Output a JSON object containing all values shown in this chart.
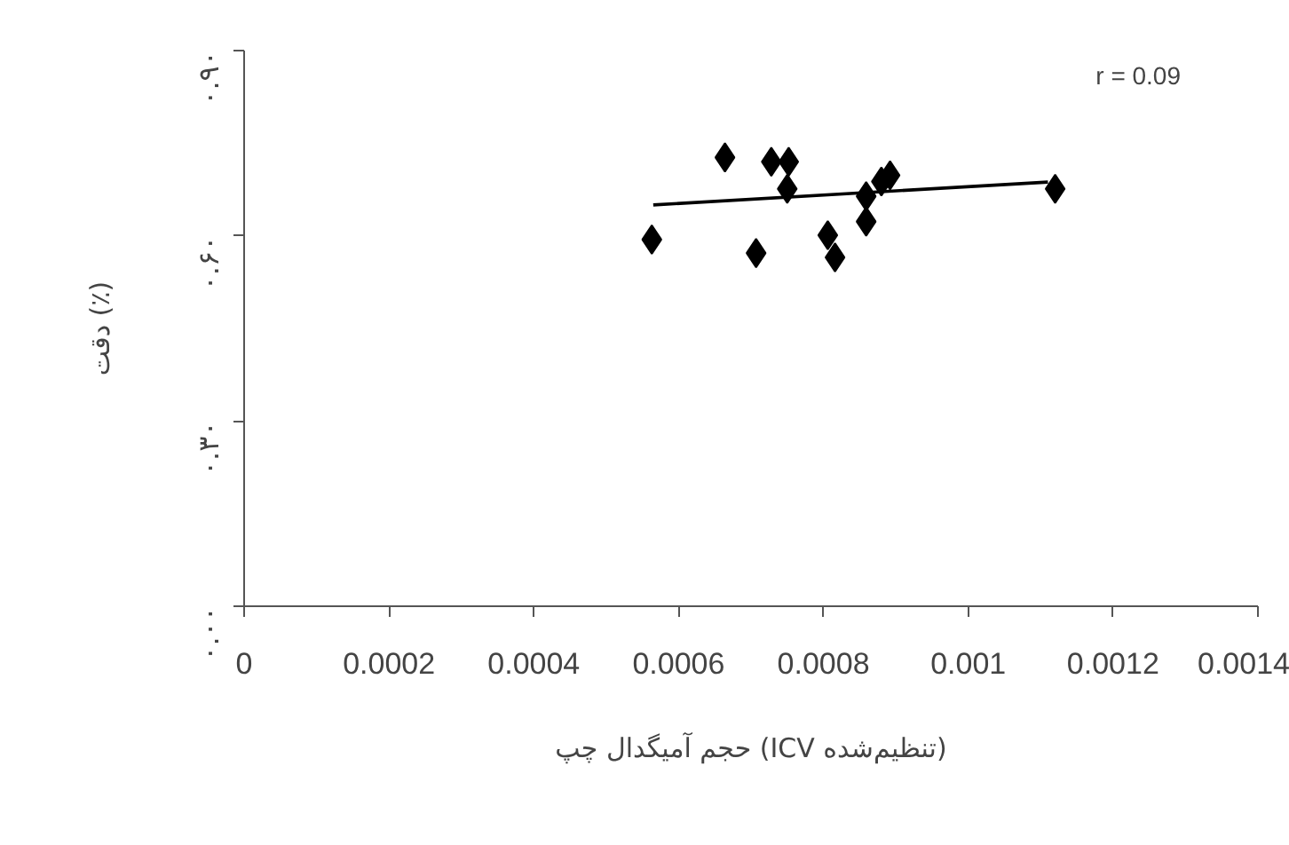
{
  "chart_data": {
    "type": "scatter",
    "xlabel": "حجم آمیگدال چپ (ICV تنظیم‌شده)",
    "ylabel": "دقت (٪)",
    "xlim": [
      0,
      0.0014
    ],
    "ylim": [
      0,
      0.9
    ],
    "xticks": [
      0,
      0.0002,
      0.0004,
      0.0006,
      0.0008,
      0.001,
      0.0012,
      0.0014
    ],
    "yticks": [
      {
        "value": 0,
        "label": "۰.۰۰"
      },
      {
        "value": 0.3,
        "label": "۰.۳۰"
      },
      {
        "value": 0.6,
        "label": "۰.۶۰"
      },
      {
        "value": 0.9,
        "label": "۰.۹۰"
      }
    ],
    "grid": false,
    "annotations": [
      "r = 0.09"
    ],
    "series": [
      {
        "color": "#000000",
        "marker": "diamond",
        "x": [
          0.000563,
          0.000664,
          0.000728,
          0.000752,
          0.00075,
          0.000707,
          0.000806,
          0.000816,
          0.000859,
          0.000859,
          0.00088,
          0.000892,
          0.00112
        ],
        "values": [
          0.594,
          0.727,
          0.72,
          0.72,
          0.676,
          0.572,
          0.601,
          0.565,
          0.623,
          0.664,
          0.688,
          0.698,
          0.676
        ]
      },
      {
        "type": "line",
        "color": "#000000",
        "x": [
          0.000565,
          0.00111
        ],
        "values": [
          0.65,
          0.687
        ]
      }
    ]
  }
}
